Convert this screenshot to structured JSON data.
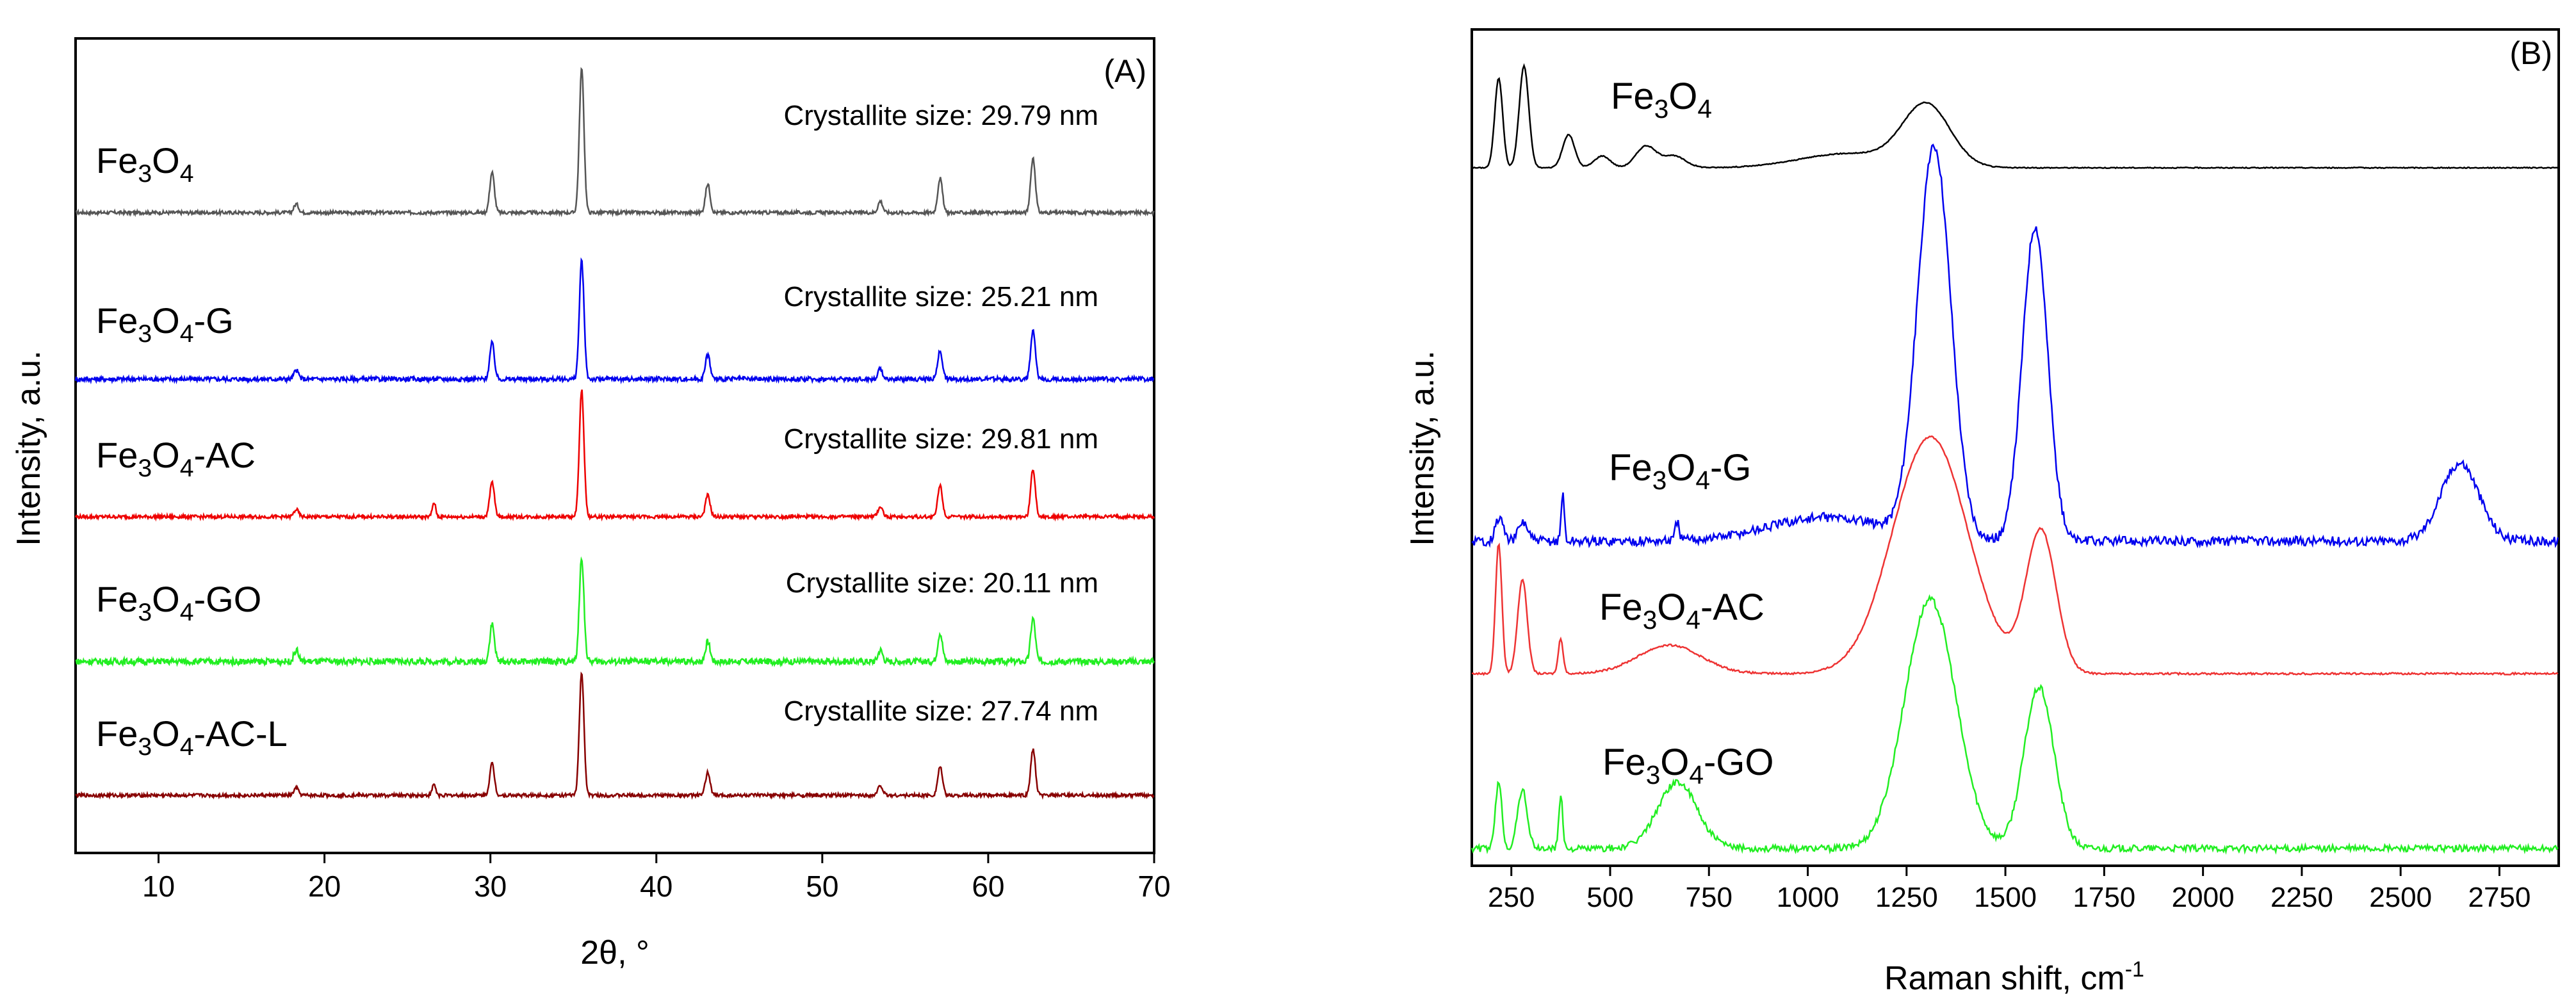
{
  "chart_data": [
    {
      "type": "line",
      "panel_label": "(A)",
      "xlabel": "2θ, °",
      "ylabel": "Intensity, a.u.",
      "xlim": [
        5,
        70
      ],
      "xticks": [
        10,
        20,
        30,
        40,
        50,
        60,
        70
      ],
      "grid": false,
      "legend": "none",
      "peaks": [
        18.3,
        30.1,
        35.5,
        43.1,
        53.5,
        57.1,
        62.7
      ],
      "series": [
        {
          "name": "Fe3O4",
          "label": {
            "base": "Fe",
            "sub1": "3",
            "mid": "O",
            "sub2": "4",
            "suffix": ""
          },
          "annotation": "Crystallite size: 29.79 nm",
          "color": "#555555",
          "peak_heights": [
            0.06,
            0.28,
            1.0,
            0.2,
            0.08,
            0.24,
            0.38
          ],
          "noise": 0.012,
          "extra_peaks": []
        },
        {
          "name": "Fe3O4-G",
          "label": {
            "base": "Fe",
            "sub1": "3",
            "mid": "O",
            "sub2": "4",
            "suffix": "-G"
          },
          "annotation": "Crystallite size: 25.21 nm",
          "color": "#0000ee",
          "peak_heights": [
            0.06,
            0.25,
            0.82,
            0.17,
            0.07,
            0.2,
            0.33
          ],
          "noise": 0.016,
          "extra_peaks": []
        },
        {
          "name": "Fe3O4-AC",
          "label": {
            "base": "Fe",
            "sub1": "3",
            "mid": "O",
            "sub2": "4",
            "suffix": "-AC"
          },
          "annotation": "Crystallite size: 29.81 nm",
          "color": "#ee0000",
          "peak_heights": [
            0.05,
            0.24,
            0.88,
            0.15,
            0.07,
            0.22,
            0.33
          ],
          "noise": 0.012,
          "extra_peaks": [
            [
              26.6,
              0.1
            ]
          ]
        },
        {
          "name": "Fe3O4-GO",
          "label": {
            "base": "Fe",
            "sub1": "3",
            "mid": "O",
            "sub2": "4",
            "suffix": "-GO"
          },
          "annotation": "Crystallite size: 20.11 nm",
          "color": "#22ee22",
          "peak_heights": [
            0.08,
            0.26,
            0.72,
            0.14,
            0.08,
            0.2,
            0.3
          ],
          "noise": 0.022,
          "extra_peaks": []
        },
        {
          "name": "Fe3O4-AC-L",
          "label": {
            "base": "Fe",
            "sub1": "3",
            "mid": "O",
            "sub2": "4",
            "suffix": "-AC-L"
          },
          "annotation": "Crystallite size: 27.74 nm",
          "color": "#880000",
          "peak_heights": [
            0.05,
            0.22,
            0.85,
            0.16,
            0.07,
            0.2,
            0.32
          ],
          "noise": 0.012,
          "extra_peaks": [
            [
              26.6,
              0.08
            ]
          ]
        }
      ]
    },
    {
      "type": "line",
      "panel_label": "(B)",
      "xlabel": "Raman shift, cm",
      "xlabel_sup": "-1",
      "ylabel": "Intensity, a.u.",
      "xlim": [
        150,
        2900
      ],
      "xticks": [
        250,
        500,
        750,
        1000,
        1250,
        1500,
        1750,
        2000,
        2250,
        2500,
        2750
      ],
      "grid": false,
      "legend": "none",
      "series": [
        {
          "name": "Fe3O4",
          "label": {
            "base": "Fe",
            "sub1": "3",
            "mid": "O",
            "sub2": "4",
            "suffix": ""
          },
          "color": "#000000",
          "noise": 0.002,
          "peaks": [
            [
              218,
              0.38,
              10
            ],
            [
              282,
              0.43,
              12
            ],
            [
              395,
              0.14,
              15
            ],
            [
              480,
              0.05,
              20
            ],
            [
              590,
              0.09,
              25
            ],
            [
              660,
              0.05,
              30
            ],
            [
              1100,
              0.06,
              120
            ],
            [
              1300,
              0.26,
              60
            ]
          ]
        },
        {
          "name": "Fe3O4-G",
          "label": {
            "base": "Fe",
            "sub1": "3",
            "mid": "O",
            "sub2": "4",
            "suffix": "-G"
          },
          "color": "#0000ee",
          "noise": 0.02,
          "peaks": [
            [
              220,
              0.1,
              10
            ],
            [
              280,
              0.08,
              12
            ],
            [
              380,
              0.2,
              4
            ],
            [
              670,
              0.08,
              5
            ],
            [
              1050,
              0.1,
              150
            ],
            [
              1320,
              1.65,
              42
            ],
            [
              1575,
              1.33,
              32
            ],
            [
              2650,
              0.33,
              48
            ]
          ]
        },
        {
          "name": "Fe3O4-AC",
          "label": {
            "base": "Fe",
            "sub1": "3",
            "mid": "O",
            "sub2": "4",
            "suffix": "-AC"
          },
          "color": "#ee3333",
          "noise": 0.004,
          "peaks": [
            [
              218,
              0.55,
              8
            ],
            [
              278,
              0.4,
              12
            ],
            [
              375,
              0.15,
              6
            ],
            [
              650,
              0.12,
              80
            ],
            [
              1310,
              1.0,
              95
            ],
            [
              1590,
              0.6,
              38
            ]
          ]
        },
        {
          "name": "Fe3O4-GO",
          "label": {
            "base": "Fe",
            "sub1": "3",
            "mid": "O",
            "sub2": "4",
            "suffix": "-GO"
          },
          "color": "#22ee22",
          "noise": 0.014,
          "peaks": [
            [
              218,
              0.28,
              8
            ],
            [
              278,
              0.25,
              12
            ],
            [
              375,
              0.22,
              5
            ],
            [
              670,
              0.28,
              50
            ],
            [
              1310,
              1.05,
              65
            ],
            [
              1585,
              0.68,
              38
            ]
          ]
        }
      ]
    }
  ]
}
